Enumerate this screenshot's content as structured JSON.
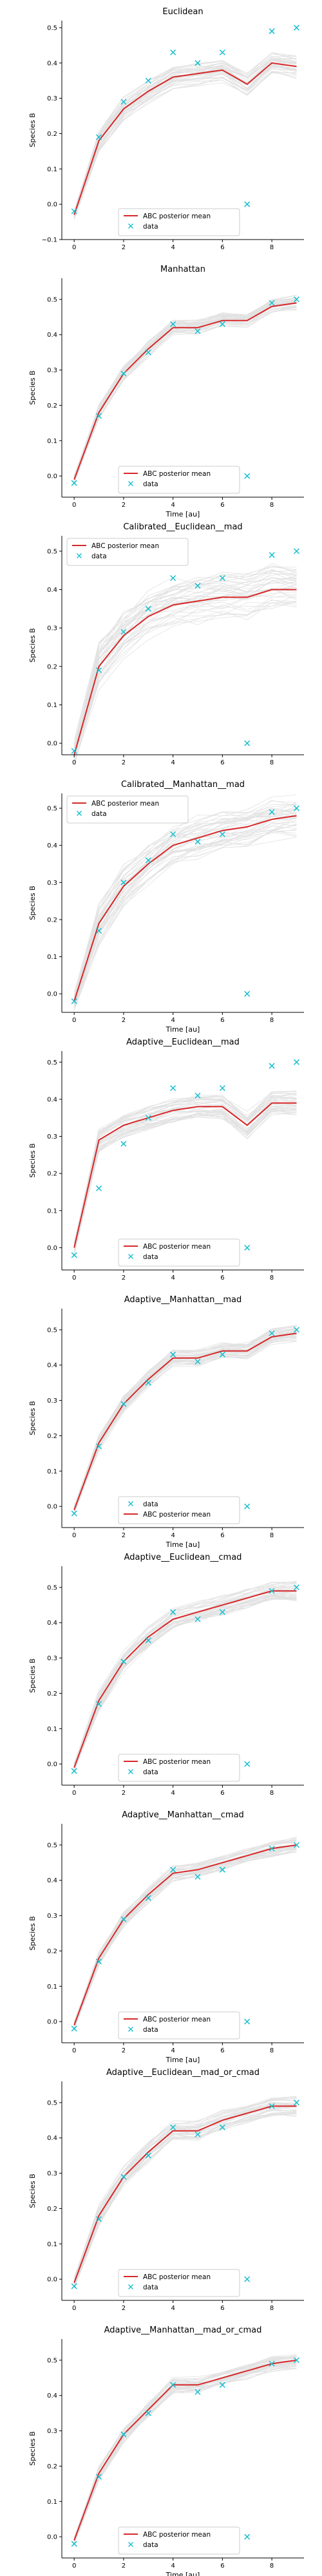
{
  "chart_data": [
    {
      "type": "line",
      "title": "Euclidean",
      "xlabel": "",
      "ylabel": "Species B",
      "xlim": [
        -0.5,
        9.3
      ],
      "ylim": [
        -0.1,
        0.52
      ],
      "xticks": [
        0,
        2,
        4,
        6,
        8
      ],
      "yticks": [
        -0.1,
        0.0,
        0.1,
        0.2,
        0.3,
        0.4,
        0.5
      ],
      "ytick_labels": [
        "−0.1",
        "0.0",
        "0.1",
        "0.2",
        "0.3",
        "0.4",
        "0.5"
      ],
      "legend_position": "lower-center",
      "legend_order": [
        "mean",
        "data"
      ],
      "posterior_band_width": 0.03,
      "series": [
        {
          "name": "ABC posterior mean",
          "x": [
            0,
            1,
            2,
            3,
            4,
            5,
            6,
            7,
            8,
            9
          ],
          "values": [
            -0.03,
            0.18,
            0.27,
            0.32,
            0.36,
            0.37,
            0.38,
            0.34,
            0.4,
            0.39
          ]
        },
        {
          "name": "data",
          "x": [
            0,
            1,
            2,
            3,
            4,
            5,
            6,
            7,
            8,
            9
          ],
          "values": [
            -0.02,
            0.19,
            0.29,
            0.35,
            0.43,
            0.4,
            0.43,
            0.0,
            0.49,
            0.5
          ]
        }
      ]
    },
    {
      "type": "line",
      "title": "Manhattan",
      "xlabel": "Time [au]",
      "ylabel": "Species B",
      "xlim": [
        -0.5,
        9.3
      ],
      "ylim": [
        -0.06,
        0.56
      ],
      "xticks": [
        0,
        2,
        4,
        6,
        8
      ],
      "yticks": [
        0.0,
        0.1,
        0.2,
        0.3,
        0.4,
        0.5
      ],
      "ytick_labels": [
        "0.0",
        "0.1",
        "0.2",
        "0.3",
        "0.4",
        "0.5"
      ],
      "legend_position": "lower-center",
      "legend_order": [
        "mean",
        "data"
      ],
      "posterior_band_width": 0.02,
      "series": [
        {
          "name": "ABC posterior mean",
          "x": [
            0,
            1,
            2,
            3,
            4,
            5,
            6,
            7,
            8,
            9
          ],
          "values": [
            -0.01,
            0.18,
            0.29,
            0.36,
            0.42,
            0.42,
            0.44,
            0.44,
            0.48,
            0.49
          ]
        },
        {
          "name": "data",
          "x": [
            0,
            1,
            2,
            3,
            4,
            5,
            6,
            7,
            8,
            9
          ],
          "values": [
            -0.02,
            0.17,
            0.29,
            0.35,
            0.43,
            0.41,
            0.43,
            0.0,
            0.49,
            0.5
          ]
        }
      ]
    },
    {
      "type": "line",
      "title": "Calibrated__Euclidean__mad",
      "xlabel": "",
      "ylabel": "Species B",
      "xlim": [
        -0.5,
        9.3
      ],
      "ylim": [
        -0.03,
        0.54
      ],
      "xticks": [
        0,
        2,
        4,
        6,
        8
      ],
      "yticks": [
        0.0,
        0.1,
        0.2,
        0.3,
        0.4,
        0.5
      ],
      "ytick_labels": [
        "0.0",
        "0.1",
        "0.2",
        "0.3",
        "0.4",
        "0.5"
      ],
      "legend_position": "upper-left",
      "legend_order": [
        "mean",
        "data"
      ],
      "posterior_band_width": 0.06,
      "series": [
        {
          "name": "ABC posterior mean",
          "x": [
            0,
            1,
            2,
            3,
            4,
            5,
            6,
            7,
            8,
            9
          ],
          "values": [
            -0.03,
            0.2,
            0.28,
            0.33,
            0.36,
            0.37,
            0.38,
            0.38,
            0.4,
            0.4
          ]
        },
        {
          "name": "data",
          "x": [
            0,
            1,
            2,
            3,
            4,
            5,
            6,
            7,
            8,
            9
          ],
          "values": [
            -0.02,
            0.19,
            0.29,
            0.35,
            0.43,
            0.41,
            0.43,
            0.0,
            0.49,
            0.5
          ]
        }
      ]
    },
    {
      "type": "line",
      "title": "Calibrated__Manhattan__mad",
      "xlabel": "Time [au]",
      "ylabel": "Species B",
      "xlim": [
        -0.5,
        9.3
      ],
      "ylim": [
        -0.05,
        0.54
      ],
      "xticks": [
        0,
        2,
        4,
        6,
        8
      ],
      "yticks": [
        0.0,
        0.1,
        0.2,
        0.3,
        0.4,
        0.5
      ],
      "ytick_labels": [
        "0.0",
        "0.1",
        "0.2",
        "0.3",
        "0.4",
        "0.5"
      ],
      "legend_position": "upper-left",
      "legend_order": [
        "mean",
        "data"
      ],
      "posterior_band_width": 0.05,
      "series": [
        {
          "name": "ABC posterior mean",
          "x": [
            0,
            1,
            2,
            3,
            4,
            5,
            6,
            7,
            8,
            9
          ],
          "values": [
            -0.02,
            0.19,
            0.29,
            0.35,
            0.4,
            0.42,
            0.44,
            0.45,
            0.47,
            0.48
          ]
        },
        {
          "name": "data",
          "x": [
            0,
            1,
            2,
            3,
            4,
            5,
            6,
            7,
            8,
            9
          ],
          "values": [
            -0.02,
            0.17,
            0.3,
            0.36,
            0.43,
            0.41,
            0.43,
            0.0,
            0.49,
            0.5
          ]
        }
      ]
    },
    {
      "type": "line",
      "title": "Adaptive__Euclidean__mad",
      "xlabel": "",
      "ylabel": "Species B",
      "xlim": [
        -0.5,
        9.3
      ],
      "ylim": [
        -0.06,
        0.53
      ],
      "xticks": [
        0,
        2,
        4,
        6,
        8
      ],
      "yticks": [
        0.0,
        0.1,
        0.2,
        0.3,
        0.4,
        0.5
      ],
      "ytick_labels": [
        "0.0",
        "0.1",
        "0.2",
        "0.3",
        "0.4",
        "0.5"
      ],
      "legend_position": "lower-center",
      "legend_order": [
        "mean",
        "data"
      ],
      "posterior_band_width": 0.03,
      "series": [
        {
          "name": "ABC posterior mean",
          "x": [
            0,
            1,
            2,
            3,
            4,
            5,
            6,
            7,
            8,
            9
          ],
          "values": [
            0.0,
            0.29,
            0.33,
            0.35,
            0.37,
            0.38,
            0.38,
            0.33,
            0.39,
            0.39
          ]
        },
        {
          "name": "data",
          "x": [
            0,
            1,
            2,
            3,
            4,
            5,
            6,
            7,
            8,
            9
          ],
          "values": [
            -0.02,
            0.16,
            0.28,
            0.35,
            0.43,
            0.41,
            0.43,
            0.0,
            0.49,
            0.5
          ]
        }
      ]
    },
    {
      "type": "line",
      "title": "Adaptive__Manhattan__mad",
      "xlabel": "Time [au]",
      "ylabel": "Species B",
      "xlim": [
        -0.5,
        9.3
      ],
      "ylim": [
        -0.06,
        0.56
      ],
      "xticks": [
        0,
        2,
        4,
        6,
        8
      ],
      "yticks": [
        0.0,
        0.1,
        0.2,
        0.3,
        0.4,
        0.5
      ],
      "ytick_labels": [
        "0.0",
        "0.1",
        "0.2",
        "0.3",
        "0.4",
        "0.5"
      ],
      "legend_position": "lower-center",
      "legend_order": [
        "data",
        "mean"
      ],
      "posterior_band_width": 0.02,
      "series": [
        {
          "name": "ABC posterior mean",
          "x": [
            0,
            1,
            2,
            3,
            4,
            5,
            6,
            7,
            8,
            9
          ],
          "values": [
            -0.01,
            0.18,
            0.29,
            0.36,
            0.42,
            0.42,
            0.44,
            0.44,
            0.48,
            0.49
          ]
        },
        {
          "name": "data",
          "x": [
            0,
            1,
            2,
            3,
            4,
            5,
            6,
            7,
            8,
            9
          ],
          "values": [
            -0.02,
            0.17,
            0.29,
            0.35,
            0.43,
            0.41,
            0.43,
            0.0,
            0.49,
            0.5
          ]
        }
      ]
    },
    {
      "type": "line",
      "title": "Adaptive__Euclidean__cmad",
      "xlabel": "",
      "ylabel": "Species B",
      "xlim": [
        -0.5,
        9.3
      ],
      "ylim": [
        -0.06,
        0.56
      ],
      "xticks": [
        0,
        2,
        4,
        6,
        8
      ],
      "yticks": [
        0.0,
        0.1,
        0.2,
        0.3,
        0.4,
        0.5
      ],
      "ytick_labels": [
        "0.0",
        "0.1",
        "0.2",
        "0.3",
        "0.4",
        "0.5"
      ],
      "legend_position": "lower-center",
      "legend_order": [
        "mean",
        "data"
      ],
      "posterior_band_width": 0.025,
      "series": [
        {
          "name": "ABC posterior mean",
          "x": [
            0,
            1,
            2,
            3,
            4,
            5,
            6,
            7,
            8,
            9
          ],
          "values": [
            -0.01,
            0.18,
            0.29,
            0.36,
            0.41,
            0.43,
            0.45,
            0.47,
            0.49,
            0.49
          ]
        },
        {
          "name": "data",
          "x": [
            0,
            1,
            2,
            3,
            4,
            5,
            6,
            7,
            8,
            9
          ],
          "values": [
            -0.02,
            0.17,
            0.29,
            0.35,
            0.43,
            0.41,
            0.43,
            0.0,
            0.49,
            0.5
          ]
        }
      ]
    },
    {
      "type": "line",
      "title": "Adaptive__Manhattan__cmad",
      "xlabel": "Time [au]",
      "ylabel": "Species B",
      "xlim": [
        -0.5,
        9.3
      ],
      "ylim": [
        -0.06,
        0.56
      ],
      "xticks": [
        0,
        2,
        4,
        6,
        8
      ],
      "yticks": [
        0.0,
        0.1,
        0.2,
        0.3,
        0.4,
        0.5
      ],
      "ytick_labels": [
        "0.0",
        "0.1",
        "0.2",
        "0.3",
        "0.4",
        "0.5"
      ],
      "legend_position": "lower-center",
      "legend_order": [
        "mean",
        "data"
      ],
      "posterior_band_width": 0.02,
      "series": [
        {
          "name": "ABC posterior mean",
          "x": [
            0,
            1,
            2,
            3,
            4,
            5,
            6,
            7,
            8,
            9
          ],
          "values": [
            -0.01,
            0.18,
            0.29,
            0.36,
            0.42,
            0.43,
            0.45,
            0.47,
            0.49,
            0.5
          ]
        },
        {
          "name": "data",
          "x": [
            0,
            1,
            2,
            3,
            4,
            5,
            6,
            7,
            8,
            9
          ],
          "values": [
            -0.02,
            0.17,
            0.29,
            0.35,
            0.43,
            0.41,
            0.43,
            0.0,
            0.49,
            0.5
          ]
        }
      ]
    },
    {
      "type": "line",
      "title": "Adaptive__Euclidean__mad_or_cmad",
      "xlabel": "",
      "ylabel": "Species B",
      "xlim": [
        -0.5,
        9.3
      ],
      "ylim": [
        -0.06,
        0.56
      ],
      "xticks": [
        0,
        2,
        4,
        6,
        8
      ],
      "yticks": [
        0.0,
        0.1,
        0.2,
        0.3,
        0.4,
        0.5
      ],
      "ytick_labels": [
        "0.0",
        "0.1",
        "0.2",
        "0.3",
        "0.4",
        "0.5"
      ],
      "legend_position": "lower-center",
      "legend_order": [
        "mean",
        "data"
      ],
      "posterior_band_width": 0.025,
      "series": [
        {
          "name": "ABC posterior mean",
          "x": [
            0,
            1,
            2,
            3,
            4,
            5,
            6,
            7,
            8,
            9
          ],
          "values": [
            -0.01,
            0.18,
            0.29,
            0.36,
            0.42,
            0.42,
            0.45,
            0.47,
            0.49,
            0.49
          ]
        },
        {
          "name": "data",
          "x": [
            0,
            1,
            2,
            3,
            4,
            5,
            6,
            7,
            8,
            9
          ],
          "values": [
            -0.02,
            0.17,
            0.29,
            0.35,
            0.43,
            0.41,
            0.43,
            0.0,
            0.49,
            0.5
          ]
        }
      ]
    },
    {
      "type": "line",
      "title": "Adaptive__Manhattan__mad_or_cmad",
      "xlabel": "Time [au]",
      "ylabel": "Species B",
      "xlim": [
        -0.5,
        9.3
      ],
      "ylim": [
        -0.06,
        0.56
      ],
      "xticks": [
        0,
        2,
        4,
        6,
        8
      ],
      "yticks": [
        0.0,
        0.1,
        0.2,
        0.3,
        0.4,
        0.5
      ],
      "ytick_labels": [
        "0.0",
        "0.1",
        "0.2",
        "0.3",
        "0.4",
        "0.5"
      ],
      "legend_position": "lower-center",
      "legend_order": [
        "mean",
        "data"
      ],
      "posterior_band_width": 0.02,
      "series": [
        {
          "name": "ABC posterior mean",
          "x": [
            0,
            1,
            2,
            3,
            4,
            5,
            6,
            7,
            8,
            9
          ],
          "values": [
            -0.01,
            0.18,
            0.29,
            0.36,
            0.43,
            0.43,
            0.45,
            0.47,
            0.49,
            0.5
          ]
        },
        {
          "name": "data",
          "x": [
            0,
            1,
            2,
            3,
            4,
            5,
            6,
            7,
            8,
            9
          ],
          "values": [
            -0.02,
            0.17,
            0.29,
            0.35,
            0.43,
            0.41,
            0.43,
            0.0,
            0.49,
            0.5
          ]
        }
      ]
    }
  ],
  "colors": {
    "mean_line": "#d62728",
    "data_marker": "#17becf",
    "posterior_samples": "#8c8c8c",
    "axis": "#000000"
  }
}
